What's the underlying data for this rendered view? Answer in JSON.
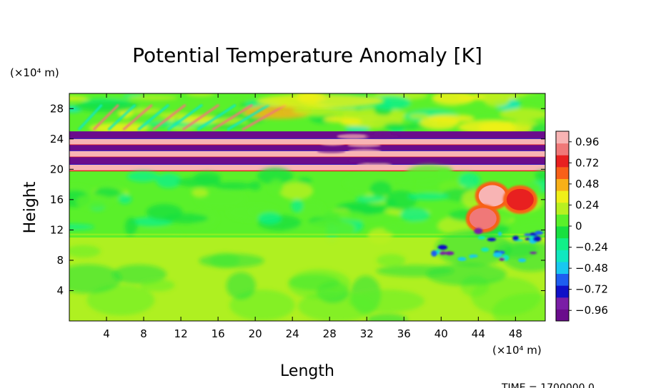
{
  "chart_data": {
    "type": "heatmap",
    "title": "Potential Temperature Anomaly [K]",
    "xlabel": "Length",
    "ylabel": "Height",
    "x_unit_label": "(×10⁴ m)",
    "y_unit_label": "(×10⁴ m)",
    "x_ticks": [
      4,
      8,
      12,
      16,
      20,
      24,
      28,
      32,
      36,
      40,
      44,
      48
    ],
    "y_ticks": [
      4,
      8,
      12,
      16,
      20,
      24,
      28
    ],
    "xlim": [
      0,
      51.2
    ],
    "ylim": [
      0,
      30
    ],
    "colorbar": {
      "ticks": [
        0.96,
        0.72,
        0.48,
        0.24,
        0,
        -0.24,
        -0.48,
        -0.72,
        -0.96
      ],
      "tick_labels": [
        "0.96",
        "0.72",
        "0.48",
        "0.24",
        "0",
        "−0.24",
        "−0.48",
        "−0.72",
        "−0.96"
      ],
      "range": [
        -1.08,
        1.08
      ],
      "colors_low_to_high": [
        "#6a0c8c",
        "#7a1ea6",
        "#1010c8",
        "#1e5ef0",
        "#18c8f0",
        "#10e8c0",
        "#10f088",
        "#18e040",
        "#5af02a",
        "#b8f020",
        "#f0f018",
        "#f8b018",
        "#f86018",
        "#e82020",
        "#f07878",
        "#f8b4b4"
      ]
    },
    "features": [
      {
        "kind": "band",
        "value": -1.0,
        "y": [
          24.0,
          25.0
        ]
      },
      {
        "kind": "band",
        "value": 1.0,
        "y": [
          23.2,
          24.0
        ]
      },
      {
        "kind": "band",
        "value": -1.0,
        "y": [
          22.4,
          23.2
        ]
      },
      {
        "kind": "band",
        "value": 1.0,
        "y": [
          21.6,
          22.4
        ]
      },
      {
        "kind": "band",
        "value": -1.0,
        "y": [
          20.6,
          21.6
        ]
      },
      {
        "kind": "band",
        "value": 1.0,
        "y": [
          19.8,
          20.6
        ]
      },
      {
        "kind": "plume",
        "value": 1.0,
        "x": 45.5,
        "y": 16.5
      },
      {
        "kind": "plume",
        "value": 0.9,
        "x": 44.5,
        "y": 13.5
      },
      {
        "kind": "plume",
        "value": 0.8,
        "x": 48.5,
        "y": 16.0
      }
    ],
    "grid": false,
    "legend": "colorbar-right"
  },
  "footer": {
    "time_label": "TIME = 1700000.0"
  }
}
